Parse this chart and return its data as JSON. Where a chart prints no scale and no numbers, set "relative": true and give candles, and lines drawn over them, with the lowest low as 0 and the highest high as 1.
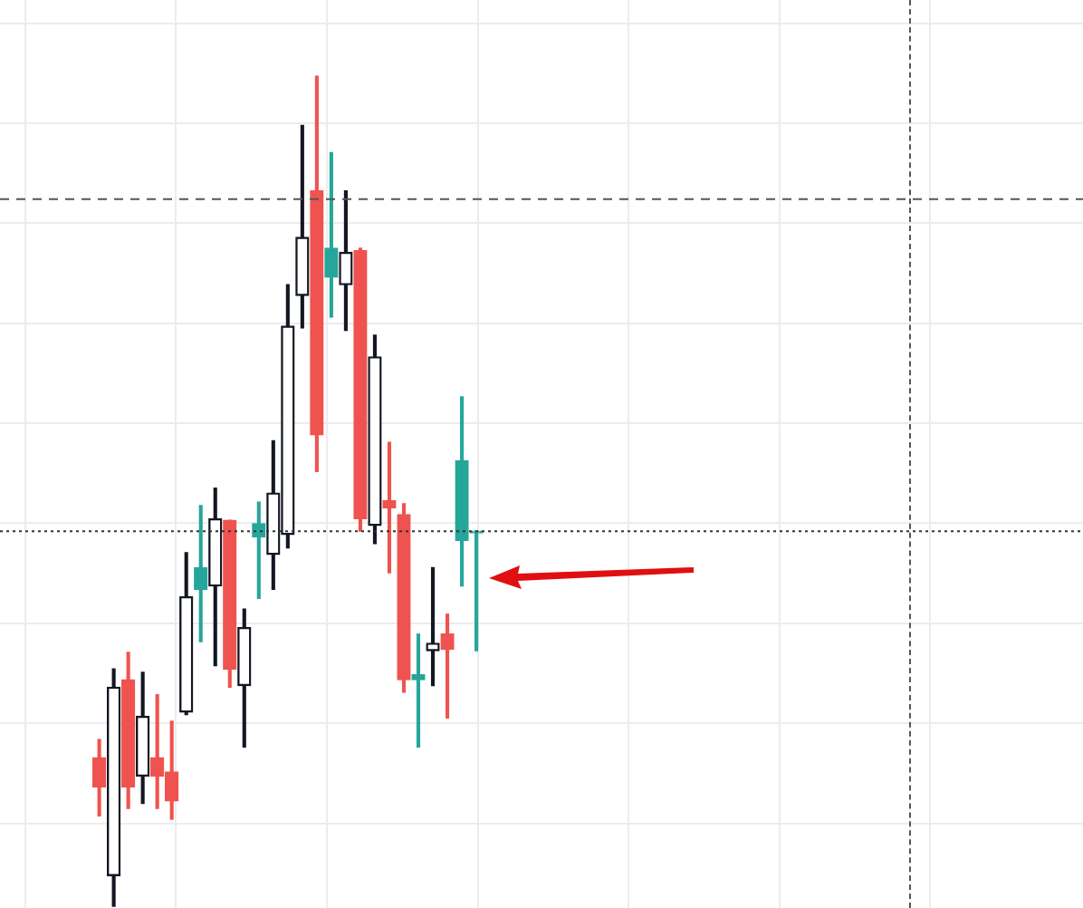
{
  "chart_data": {
    "type": "candlestick",
    "relative": true,
    "grid": true,
    "categories": [
      null,
      null,
      null,
      null,
      null,
      null,
      null,
      null,
      null,
      null,
      null,
      null,
      null,
      null,
      null,
      null,
      null,
      null,
      null,
      null,
      null,
      null,
      null,
      null,
      null,
      null,
      null
    ],
    "ohlc": [
      [
        0.179,
        0.201,
        0.109,
        0.144
      ],
      [
        0.037,
        0.286,
        0,
        0.264
      ],
      [
        0.273,
        0.306,
        0.118,
        0.144
      ],
      [
        0.157,
        0.282,
        0.124,
        0.229
      ],
      [
        0.179,
        0.255,
        0.118,
        0.157
      ],
      [
        0.162,
        0.223,
        0.105,
        0.127
      ],
      [
        0.234,
        0.426,
        0.231,
        0.373
      ],
      [
        0.408,
        0.483,
        0.319,
        0.382
      ],
      [
        0.386,
        0.504,
        0.29,
        0.467
      ],
      [
        0.465,
        0.465,
        0.264,
        0.286
      ],
      [
        0.266,
        0.358,
        0.192,
        0.336
      ],
      [
        0.461,
        0.487,
        0.371,
        0.445
      ],
      [
        0.424,
        0.561,
        0.382,
        0.498
      ],
      [
        0.448,
        0.749,
        0.432,
        0.699
      ],
      [
        0.736,
        0.941,
        0.697,
        0.806
      ],
      [
        0.862,
        1,
        0.524,
        0.568
      ],
      [
        0.793,
        0.908,
        0.71,
        0.758
      ],
      [
        0.749,
        0.862,
        0.694,
        0.788
      ],
      [
        0.79,
        0.793,
        0.452,
        0.467
      ],
      [
        0.459,
        0.688,
        0.437,
        0.662
      ],
      [
        0.489,
        0.559,
        0.402,
        0.48
      ],
      [
        0.472,
        0.485,
        0.258,
        0.273
      ],
      [
        0.279,
        0.328,
        0.192,
        0.273
      ],
      [
        0.308,
        0.408,
        0.266,
        0.317
      ],
      [
        0.328,
        0.352,
        0.227,
        0.31
      ],
      [
        0.537,
        0.614,
        0.386,
        0.441
      ],
      [
        0.452,
        0.452,
        0.308,
        0.45
      ]
    ],
    "colors": [
      "#ef5350",
      "#131722",
      "#ef5350",
      "#131722",
      "#ef5350",
      "#ef5350",
      "#131722",
      "#26a69a",
      "#131722",
      "#ef5350",
      "#131722",
      "#26a69a",
      "#131722",
      "#131722",
      "#131722",
      "#ef5350",
      "#26a69a",
      "#131722",
      "#ef5350",
      "#131722",
      "#ef5350",
      "#ef5350",
      "#26a69a",
      "#131722",
      "#ef5350",
      "#26a69a",
      "#26a69a"
    ],
    "ref_lines": [
      {
        "axis": "y",
        "value": 0.852,
        "color": "#555555",
        "line_style": "dashed"
      },
      {
        "axis": "y",
        "value": 0.452,
        "color": "#333333",
        "line_style": "dotted"
      }
    ]
  }
}
